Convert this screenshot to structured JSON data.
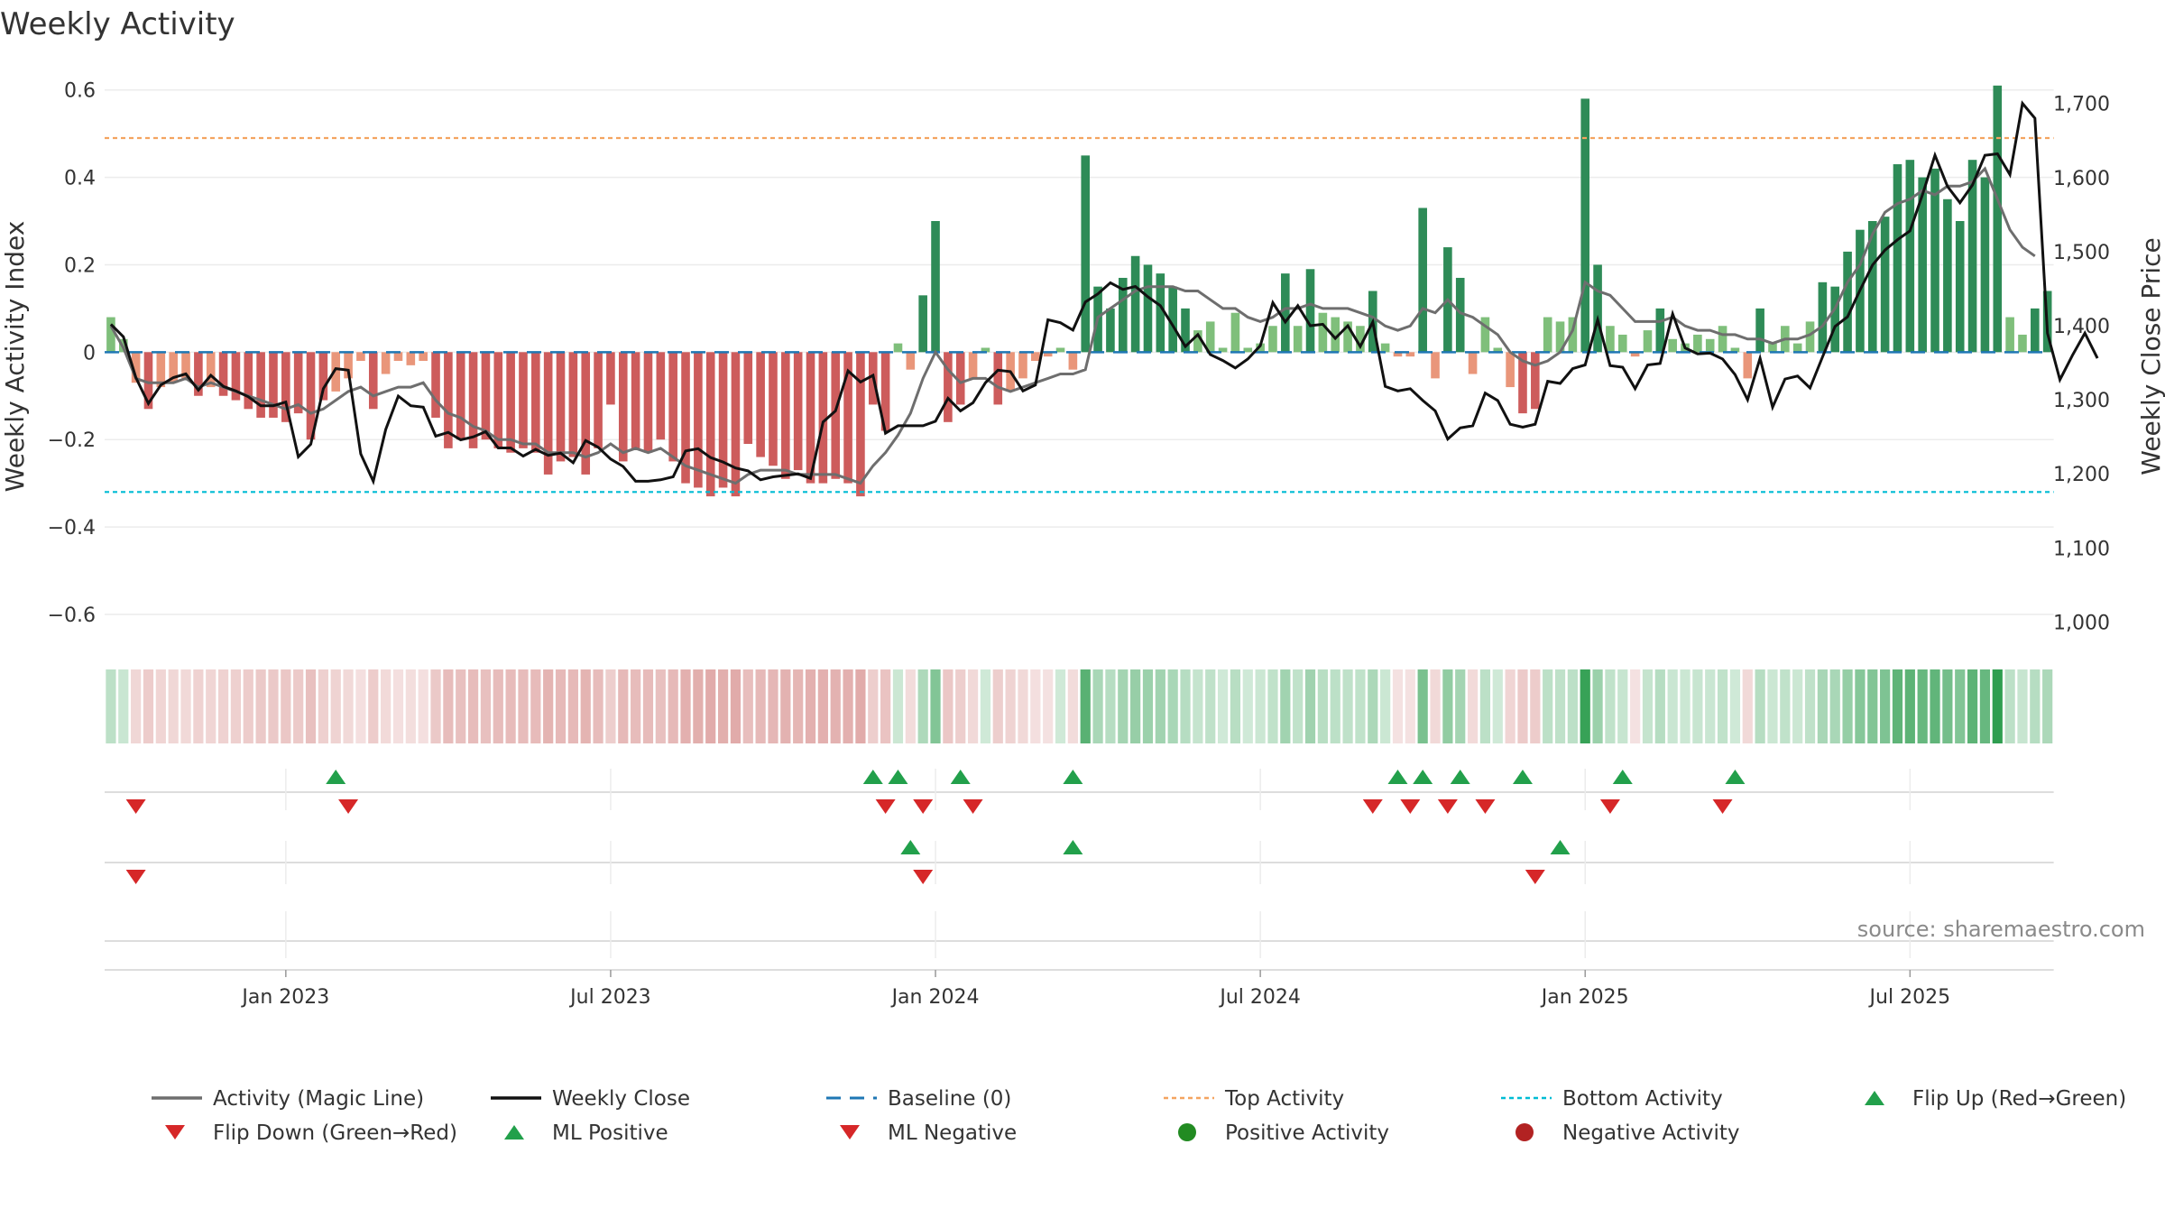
{
  "chart_data": {
    "type": "bar",
    "title": "Weekly Activity",
    "ylabel_left": "Weekly Activity Index",
    "ylabel_right": "Weekly Close Price",
    "ylim_left": [
      -0.66,
      0.62
    ],
    "ylim_right": [
      975,
      1730
    ],
    "left_ticks": [
      {
        "v": 0.6,
        "label": "0.6"
      },
      {
        "v": 0.4,
        "label": "0.4"
      },
      {
        "v": 0.2,
        "label": "0.2"
      },
      {
        "v": 0,
        "label": "0"
      },
      {
        "v": -0.2,
        "label": "−0.2"
      },
      {
        "v": -0.4,
        "label": "−0.4"
      },
      {
        "v": -0.6,
        "label": "−0.6"
      }
    ],
    "right_ticks": [
      {
        "v": 1700,
        "label": "1,700"
      },
      {
        "v": 1600,
        "label": "1,600"
      },
      {
        "v": 1500,
        "label": "1,500"
      },
      {
        "v": 1400,
        "label": "1,400"
      },
      {
        "v": 1300,
        "label": "1,300"
      },
      {
        "v": 1200,
        "label": "1,200"
      },
      {
        "v": 1100,
        "label": "1,100"
      },
      {
        "v": 1000,
        "label": "1,000"
      }
    ],
    "x_ticks": [
      {
        "week": 14.5,
        "label": "Jan 2023"
      },
      {
        "week": 40.5,
        "label": "Jul 2023"
      },
      {
        "week": 66.5,
        "label": "Jan 2024"
      },
      {
        "week": 92.5,
        "label": "Jul 2024"
      },
      {
        "week": 118.5,
        "label": "Jan 2025"
      },
      {
        "week": 144.5,
        "label": "Jul 2025"
      }
    ],
    "top_activity": 0.49,
    "bottom_activity": -0.32,
    "baseline": 0,
    "activity": [
      0.08,
      0.03,
      -0.07,
      -0.13,
      -0.08,
      -0.07,
      -0.06,
      -0.1,
      -0.08,
      -0.1,
      -0.11,
      -0.13,
      -0.15,
      -0.15,
      -0.16,
      -0.14,
      -0.2,
      -0.11,
      -0.09,
      -0.06,
      -0.02,
      -0.13,
      -0.05,
      -0.02,
      -0.03,
      -0.02,
      -0.15,
      -0.22,
      -0.2,
      -0.22,
      -0.2,
      -0.22,
      -0.23,
      -0.22,
      -0.23,
      -0.28,
      -0.25,
      -0.24,
      -0.28,
      -0.22,
      -0.12,
      -0.25,
      -0.22,
      -0.23,
      -0.2,
      -0.25,
      -0.3,
      -0.31,
      -0.33,
      -0.31,
      -0.33,
      -0.21,
      -0.24,
      -0.26,
      -0.29,
      -0.27,
      -0.3,
      -0.3,
      -0.29,
      -0.3,
      -0.33,
      -0.12,
      -0.18,
      0.02,
      -0.04,
      0.13,
      0.3,
      -0.16,
      -0.12,
      -0.06,
      0.01,
      -0.12,
      -0.09,
      -0.06,
      -0.02,
      -0.01,
      0.01,
      -0.04,
      0.45,
      0.15,
      0.1,
      0.17,
      0.22,
      0.2,
      0.18,
      0.15,
      0.1,
      0.05,
      0.07,
      0.01,
      0.09,
      0.01,
      0.02,
      0.06,
      0.18,
      0.06,
      0.19,
      0.09,
      0.08,
      0.07,
      0.06,
      0.14,
      0.02,
      -0.01,
      -0.01,
      0.33,
      -0.06,
      0.24,
      0.17,
      -0.05,
      0.08,
      0.01,
      -0.08,
      -0.14,
      -0.13,
      0.08,
      0.07,
      0.08,
      0.58,
      0.2,
      0.06,
      0.04,
      -0.01,
      0.05,
      0.1,
      0.03,
      0.02,
      0.04,
      0.03,
      0.06,
      0.01,
      -0.06,
      0.1,
      0.02,
      0.06,
      0.02,
      0.07,
      0.16,
      0.15,
      0.23,
      0.28,
      0.3,
      0.31,
      0.43,
      0.44,
      0.4,
      0.42,
      0.35,
      0.3,
      0.44,
      0.4,
      0.61,
      0.08,
      0.04,
      0.1,
      0.14
    ],
    "magic_line": [
      0.06,
      0.01,
      -0.06,
      -0.07,
      -0.07,
      -0.07,
      -0.06,
      -0.08,
      -0.07,
      -0.08,
      -0.09,
      -0.1,
      -0.11,
      -0.12,
      -0.13,
      -0.12,
      -0.14,
      -0.13,
      -0.11,
      -0.09,
      -0.08,
      -0.1,
      -0.09,
      -0.08,
      -0.08,
      -0.07,
      -0.11,
      -0.14,
      -0.15,
      -0.17,
      -0.18,
      -0.2,
      -0.2,
      -0.21,
      -0.21,
      -0.23,
      -0.23,
      -0.23,
      -0.24,
      -0.23,
      -0.21,
      -0.23,
      -0.22,
      -0.23,
      -0.22,
      -0.24,
      -0.26,
      -0.27,
      -0.28,
      -0.29,
      -0.3,
      -0.28,
      -0.27,
      -0.27,
      -0.27,
      -0.28,
      -0.28,
      -0.28,
      -0.28,
      -0.29,
      -0.3,
      -0.26,
      -0.23,
      -0.19,
      -0.14,
      -0.06,
      0.0,
      -0.04,
      -0.07,
      -0.06,
      -0.06,
      -0.08,
      -0.09,
      -0.08,
      -0.07,
      -0.06,
      -0.05,
      -0.05,
      -0.04,
      0.08,
      0.1,
      0.12,
      0.14,
      0.15,
      0.15,
      0.15,
      0.14,
      0.14,
      0.12,
      0.1,
      0.1,
      0.08,
      0.07,
      0.08,
      0.1,
      0.1,
      0.11,
      0.1,
      0.1,
      0.1,
      0.09,
      0.08,
      0.06,
      0.05,
      0.06,
      0.1,
      0.09,
      0.12,
      0.09,
      0.08,
      0.06,
      0.04,
      0.0,
      -0.02,
      -0.03,
      -0.02,
      0.0,
      0.05,
      0.16,
      0.14,
      0.13,
      0.1,
      0.07,
      0.07,
      0.07,
      0.08,
      0.06,
      0.05,
      0.05,
      0.04,
      0.04,
      0.03,
      0.03,
      0.02,
      0.03,
      0.03,
      0.04,
      0.06,
      0.1,
      0.16,
      0.2,
      0.27,
      0.32,
      0.34,
      0.35,
      0.37,
      0.36,
      0.38,
      0.38,
      0.39,
      0.42,
      0.35,
      0.28,
      0.24,
      0.22
    ],
    "weekly_close": [
      1402,
      1385,
      1330,
      1295,
      1320,
      1330,
      1335,
      1313,
      1333,
      1318,
      1312,
      1304,
      1292,
      1292,
      1297,
      1223,
      1240,
      1315,
      1342,
      1340,
      1227,
      1190,
      1260,
      1305,
      1292,
      1290,
      1251,
      1256,
      1246,
      1250,
      1257,
      1235,
      1235,
      1224,
      1233,
      1225,
      1228,
      1215,
      1245,
      1236,
      1220,
      1210,
      1190,
      1190,
      1192,
      1196,
      1231,
      1234,
      1222,
      1216,
      1208,
      1204,
      1192,
      1196,
      1198,
      1200,
      1194,
      1270,
      1285,
      1339,
      1324,
      1333,
      1255,
      1265,
      1265,
      1265,
      1271,
      1302,
      1285,
      1296,
      1323,
      1340,
      1338,
      1312,
      1320,
      1408,
      1404,
      1394,
      1432,
      1443,
      1458,
      1449,
      1453,
      1439,
      1427,
      1400,
      1372,
      1388,
      1361,
      1353,
      1343,
      1355,
      1373,
      1431,
      1405,
      1427,
      1400,
      1402,
      1383,
      1400,
      1372,
      1405,
      1318,
      1312,
      1315,
      1299,
      1285,
      1247,
      1262,
      1265,
      1309,
      1299,
      1267,
      1263,
      1267,
      1325,
      1322,
      1342,
      1347,
      1408,
      1346,
      1344,
      1315,
      1347,
      1349,
      1416,
      1370,
      1362,
      1363,
      1355,
      1334,
      1300,
      1356,
      1290,
      1328,
      1332,
      1316,
      1358,
      1399,
      1412,
      1448,
      1482,
      1502,
      1516,
      1528,
      1577,
      1630,
      1588,
      1566,
      1590,
      1630,
      1632,
      1604,
      1700,
      1680,
      1390,
      1327,
      1360,
      1390,
      1356
    ],
    "flip_up_weeks": [
      18,
      61,
      63,
      68,
      77,
      103,
      105,
      108,
      113,
      121,
      130
    ],
    "flip_down_weeks": [
      2,
      19,
      62,
      65,
      69,
      101,
      104,
      107,
      110,
      120,
      129
    ],
    "ml_positive_weeks": [
      64,
      77,
      116
    ],
    "ml_negative_weeks": [
      2,
      65,
      114
    ],
    "legend": [
      "Activity (Magic Line)",
      "Weekly Close",
      "Baseline (0)",
      "Top Activity",
      "Bottom Activity",
      "Flip Up (Red→Green)",
      "Flip Down (Green→Red)",
      "ML Positive",
      "ML Negative",
      "Positive Activity",
      "Negative Activity"
    ],
    "source": "source: sharemaestro.com"
  },
  "colors": {
    "green_strong": "#2e8b57",
    "green_light": "#7fbf7b",
    "red_strong": "#cd5c5c",
    "red_light": "#e9967a",
    "magic_line": "#6e6e6e",
    "close_line": "#111111",
    "baseline": "#1f77b4",
    "top_line": "#f4a460",
    "bottom_line": "#00bcd4",
    "marker_up": "#22a04b",
    "marker_down": "#d62728",
    "dot_pos": "#228b22",
    "dot_neg": "#b22222"
  }
}
